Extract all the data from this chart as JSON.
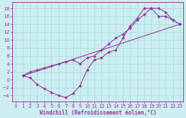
{
  "xlabel": "Windchill (Refroidissement éolien,°C)",
  "xlim": [
    -0.5,
    23.5
  ],
  "ylim": [
    -5.5,
    19.5
  ],
  "xticks": [
    0,
    1,
    2,
    3,
    4,
    5,
    6,
    7,
    8,
    9,
    10,
    11,
    12,
    13,
    14,
    15,
    16,
    17,
    18,
    19,
    20,
    21,
    22,
    23
  ],
  "yticks": [
    -4,
    -2,
    0,
    2,
    4,
    6,
    8,
    10,
    12,
    14,
    16,
    18
  ],
  "bg_color": "#cceef0",
  "line_color": "#993399",
  "grid_color": "#aadddd",
  "curve1_x": [
    1,
    2,
    3,
    4,
    5,
    6,
    7,
    8,
    9,
    10,
    11,
    12,
    13,
    14,
    15,
    16,
    17,
    18,
    19,
    20,
    21,
    22,
    23
  ],
  "curve1_y": [
    1,
    0.5,
    -1.2,
    -2.3,
    -3.2,
    -4.0,
    -4.5,
    -3.5,
    -1.5,
    2.5,
    5,
    5.5,
    7,
    7.5,
    10.5,
    13.5,
    15.5,
    18,
    18,
    18,
    17,
    15,
    14
  ],
  "curve2_x": [
    1,
    2,
    3,
    4,
    5,
    6,
    7,
    8,
    9,
    10,
    11,
    12,
    13,
    14,
    15,
    16,
    17,
    18,
    19,
    20,
    21,
    22,
    23
  ],
  "curve2_y": [
    1,
    2,
    2.5,
    3,
    3.5,
    4,
    4.5,
    5,
    4,
    5.5,
    6,
    7.5,
    9,
    10.5,
    11.5,
    13,
    15,
    16.5,
    18,
    16,
    16,
    15,
    14
  ],
  "curve3_x": [
    1,
    23
  ],
  "curve3_y": [
    1,
    14
  ],
  "markersize": 2.0,
  "linewidth": 0.8,
  "tick_fontsize": 5.0,
  "xlabel_fontsize": 5.5
}
